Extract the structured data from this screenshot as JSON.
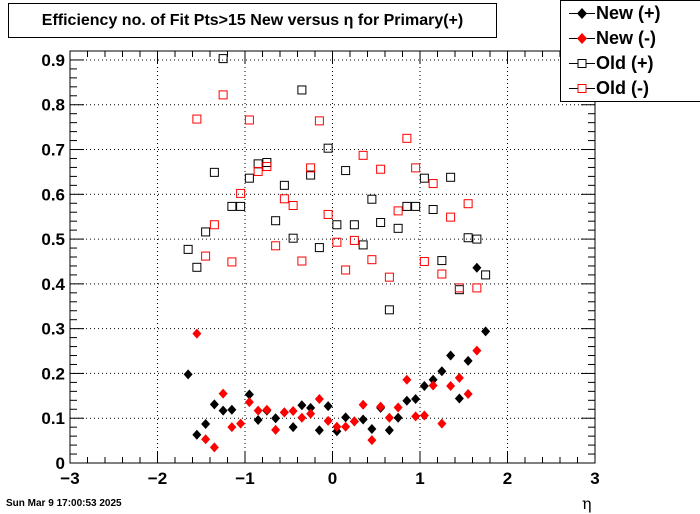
{
  "chart_data": {
    "type": "scatter",
    "title": "Efficiency no. of Fit Pts>15 New versus η for Primary(+)",
    "xlabel": "η",
    "ylabel": "",
    "xlim": [
      -3,
      3
    ],
    "ylim": [
      0,
      0.92
    ],
    "x_ticks": [
      "−3",
      "−2",
      "−1",
      "0",
      "1",
      "2",
      "3"
    ],
    "y_ticks": [
      "0",
      "0.1",
      "0.2",
      "0.3",
      "0.4",
      "0.5",
      "0.6",
      "0.7",
      "0.8",
      "0.9"
    ],
    "grid": true,
    "legend_position": "top-right",
    "series": [
      {
        "name": "New (+)",
        "marker": "filled-diamond",
        "color": "#000000",
        "points": [
          [
            -1.65,
            0.198
          ],
          [
            -1.55,
            0.063
          ],
          [
            -1.45,
            0.087
          ],
          [
            -1.35,
            0.131
          ],
          [
            -1.25,
            0.117
          ],
          [
            -1.15,
            0.119
          ],
          [
            -0.95,
            0.153
          ],
          [
            -0.85,
            0.096
          ],
          [
            -0.75,
            0.117
          ],
          [
            -0.65,
            0.1
          ],
          [
            -0.55,
            0.113
          ],
          [
            -0.45,
            0.08
          ],
          [
            -0.35,
            0.129
          ],
          [
            -0.25,
            0.123
          ],
          [
            -0.15,
            0.073
          ],
          [
            -0.05,
            0.127
          ],
          [
            0.05,
            0.071
          ],
          [
            0.15,
            0.102
          ],
          [
            0.25,
            0.093
          ],
          [
            0.35,
            0.097
          ],
          [
            0.45,
            0.076
          ],
          [
            0.55,
            0.123
          ],
          [
            0.65,
            0.073
          ],
          [
            0.75,
            0.101
          ],
          [
            0.85,
            0.139
          ],
          [
            0.95,
            0.143
          ],
          [
            1.05,
            0.172
          ],
          [
            1.15,
            0.186
          ],
          [
            1.25,
            0.205
          ],
          [
            1.35,
            0.24
          ],
          [
            1.45,
            0.144
          ],
          [
            1.55,
            0.228
          ],
          [
            1.65,
            0.436
          ],
          [
            1.75,
            0.294
          ]
        ]
      },
      {
        "name": "New (-)",
        "marker": "filled-diamond",
        "color": "#ff0000",
        "points": [
          [
            -1.55,
            0.289
          ],
          [
            -1.45,
            0.053
          ],
          [
            -1.35,
            0.035
          ],
          [
            -1.25,
            0.155
          ],
          [
            -1.15,
            0.08
          ],
          [
            -1.05,
            0.088
          ],
          [
            -0.95,
            0.136
          ],
          [
            -0.85,
            0.117
          ],
          [
            -0.75,
            0.119
          ],
          [
            -0.65,
            0.074
          ],
          [
            -0.55,
            0.113
          ],
          [
            -0.45,
            0.116
          ],
          [
            -0.35,
            0.101
          ],
          [
            -0.25,
            0.11
          ],
          [
            -0.15,
            0.143
          ],
          [
            -0.05,
            0.094
          ],
          [
            0.05,
            0.081
          ],
          [
            0.15,
            0.081
          ],
          [
            0.25,
            0.093
          ],
          [
            0.35,
            0.13
          ],
          [
            0.45,
            0.051
          ],
          [
            0.55,
            0.126
          ],
          [
            0.65,
            0.101
          ],
          [
            0.75,
            0.124
          ],
          [
            0.85,
            0.186
          ],
          [
            0.95,
            0.104
          ],
          [
            1.05,
            0.106
          ],
          [
            1.15,
            0.173
          ],
          [
            1.25,
            0.088
          ],
          [
            1.35,
            0.172
          ],
          [
            1.45,
            0.19
          ],
          [
            1.55,
            0.154
          ],
          [
            1.65,
            0.251
          ]
        ]
      },
      {
        "name": "Old (+)",
        "marker": "open-square",
        "color": "#000000",
        "points": [
          [
            -1.65,
            0.477
          ],
          [
            -1.55,
            0.437
          ],
          [
            -1.45,
            0.516
          ],
          [
            -1.35,
            0.649
          ],
          [
            -1.25,
            0.903
          ],
          [
            -1.15,
            0.573
          ],
          [
            -1.05,
            0.573
          ],
          [
            -0.95,
            0.636
          ],
          [
            -0.85,
            0.668
          ],
          [
            -0.75,
            0.671
          ],
          [
            -0.65,
            0.541
          ],
          [
            -0.55,
            0.62
          ],
          [
            -0.45,
            0.502
          ],
          [
            -0.35,
            0.833
          ],
          [
            -0.25,
            0.643
          ],
          [
            -0.15,
            0.481
          ],
          [
            -0.05,
            0.703
          ],
          [
            0.05,
            0.532
          ],
          [
            0.15,
            0.653
          ],
          [
            0.25,
            0.532
          ],
          [
            0.35,
            0.487
          ],
          [
            0.45,
            0.589
          ],
          [
            0.55,
            0.537
          ],
          [
            0.65,
            0.342
          ],
          [
            0.75,
            0.524
          ],
          [
            0.85,
            0.573
          ],
          [
            0.95,
            0.573
          ],
          [
            1.05,
            0.636
          ],
          [
            1.15,
            0.566
          ],
          [
            1.25,
            0.452
          ],
          [
            1.35,
            0.638
          ],
          [
            1.45,
            0.387
          ],
          [
            1.55,
            0.503
          ],
          [
            1.65,
            0.5
          ],
          [
            1.75,
            0.42
          ]
        ]
      },
      {
        "name": "Old (-)",
        "marker": "open-square",
        "color": "#ff0000",
        "points": [
          [
            -1.55,
            0.768
          ],
          [
            -1.45,
            0.462
          ],
          [
            -1.35,
            0.532
          ],
          [
            -1.25,
            0.822
          ],
          [
            -1.15,
            0.449
          ],
          [
            -1.05,
            0.602
          ],
          [
            -0.95,
            0.766
          ],
          [
            -0.85,
            0.651
          ],
          [
            -0.75,
            0.662
          ],
          [
            -0.65,
            0.485
          ],
          [
            -0.55,
            0.59
          ],
          [
            -0.45,
            0.575
          ],
          [
            -0.35,
            0.451
          ],
          [
            -0.25,
            0.659
          ],
          [
            -0.15,
            0.764
          ],
          [
            -0.05,
            0.555
          ],
          [
            0.05,
            0.493
          ],
          [
            0.15,
            0.431
          ],
          [
            0.25,
            0.497
          ],
          [
            0.35,
            0.687
          ],
          [
            0.45,
            0.454
          ],
          [
            0.55,
            0.656
          ],
          [
            0.65,
            0.415
          ],
          [
            0.75,
            0.563
          ],
          [
            0.85,
            0.725
          ],
          [
            0.95,
            0.659
          ],
          [
            1.05,
            0.45
          ],
          [
            1.15,
            0.624
          ],
          [
            1.25,
            0.422
          ],
          [
            1.35,
            0.549
          ],
          [
            1.45,
            0.391
          ],
          [
            1.55,
            0.579
          ],
          [
            1.65,
            0.391
          ]
        ]
      }
    ]
  },
  "footer": {
    "datestamp": "Sun Mar  9 17:00:53 2025"
  }
}
